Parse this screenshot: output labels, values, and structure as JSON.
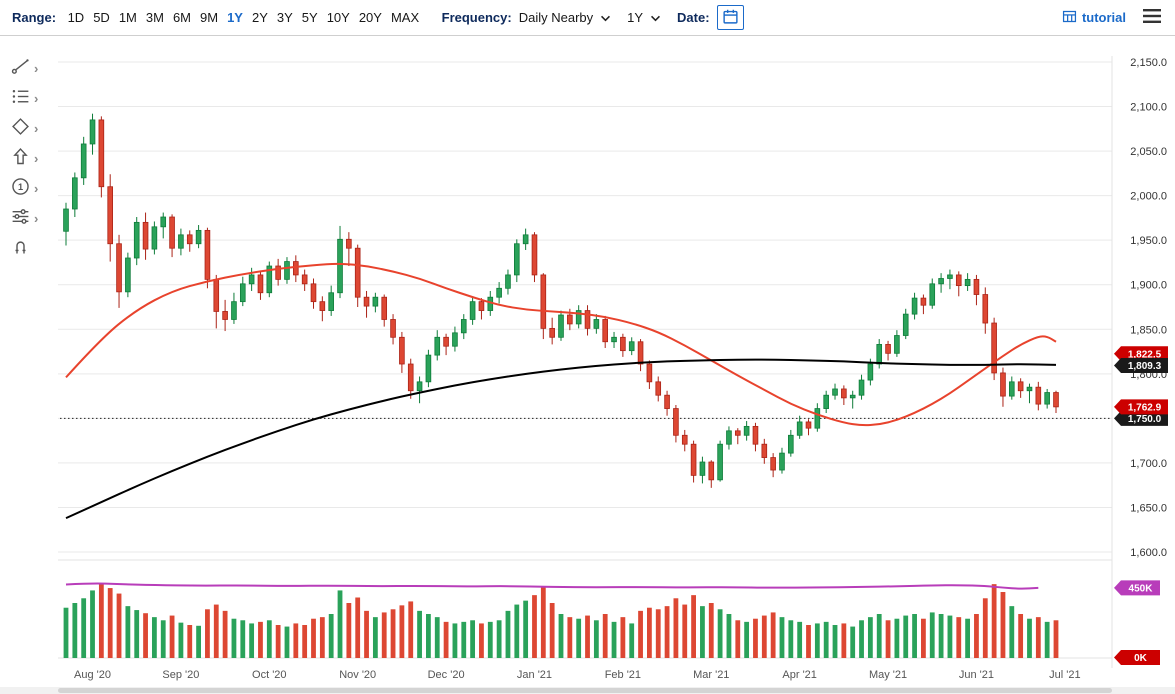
{
  "toolbar": {
    "range_label": "Range:",
    "range_options": [
      "1D",
      "5D",
      "1M",
      "3M",
      "6M",
      "9M",
      "1Y",
      "2Y",
      "3Y",
      "5Y",
      "10Y",
      "20Y",
      "MAX"
    ],
    "range_selected": "1Y",
    "frequency_label": "Frequency:",
    "frequency_value": "Daily Nearby",
    "period_value": "1Y",
    "date_label": "Date:",
    "tutorial_label": "tutorial"
  },
  "tools": [
    {
      "icon": "trend-line-tool-icon",
      "chevron": true
    },
    {
      "icon": "indicators-tool-icon",
      "chevron": true
    },
    {
      "icon": "shapes-tool-icon",
      "chevron": true
    },
    {
      "icon": "arrow-tool-icon",
      "chevron": true
    },
    {
      "icon": "number-label-tool-icon",
      "chevron": true
    },
    {
      "icon": "settings-tool-icon",
      "chevron": true
    },
    {
      "icon": "magnet-tool-icon",
      "chevron": false
    }
  ],
  "colors": {
    "accent_blue": "#1b6ac9",
    "label_navy": "#0e2a5c",
    "candle_up": "#2aa25a",
    "candle_up_stroke": "#0e7c39",
    "candle_down": "#dd4733",
    "candle_down_stroke": "#ab2317",
    "ma_fast": "#e8432d",
    "ma_slow": "#000000",
    "open_interest": "#b83dba",
    "badge_red": "#cc0000",
    "badge_black": "#1a1a1a",
    "grid": "#e9e9e9"
  },
  "chart_data": {
    "type": "candlestick",
    "x_axis": {
      "labels": [
        {
          "label": "Aug '20",
          "index": 3
        },
        {
          "label": "Sep '20",
          "index": 13
        },
        {
          "label": "Oct '20",
          "index": 23
        },
        {
          "label": "Nov '20",
          "index": 33
        },
        {
          "label": "Dec '20",
          "index": 43
        },
        {
          "label": "Jan '21",
          "index": 53
        },
        {
          "label": "Feb '21",
          "index": 63
        },
        {
          "label": "Mar '21",
          "index": 73
        },
        {
          "label": "Apr '21",
          "index": 83
        },
        {
          "label": "May '21",
          "index": 93
        },
        {
          "label": "Jun '21",
          "index": 103
        },
        {
          "label": "Jul '21",
          "index": 113
        }
      ]
    },
    "y_axis": {
      "min": 1600,
      "max": 2150,
      "step": 50,
      "labels": [
        "2,150.0",
        "2,100.0",
        "2,050.0",
        "2,000.0",
        "1,950.0",
        "1,900.0",
        "1,850.0",
        "1,800.0",
        "1,750.0",
        "1,700.0",
        "1,650.0",
        "1,600.0"
      ]
    },
    "reference_line": {
      "value": 1750.0,
      "style": "dotted"
    },
    "last_price": 1762.9,
    "badges": [
      {
        "label": "1,822.5",
        "value": 1822.5,
        "color": "#cc0000"
      },
      {
        "label": "1,809.3",
        "value": 1809.3,
        "color": "#1a1a1a"
      },
      {
        "label": "1,750.0",
        "value": 1750.0,
        "color": "#1a1a1a"
      },
      {
        "label": "1,762.9",
        "value": 1762.9,
        "color": "#cc0000"
      }
    ],
    "overlays": [
      {
        "name": "moving-average-fast",
        "color": "#e8432d",
        "points": [
          [
            0,
            1796
          ],
          [
            4,
            1840
          ],
          [
            8,
            1872
          ],
          [
            12,
            1893
          ],
          [
            16,
            1904
          ],
          [
            20,
            1912
          ],
          [
            24,
            1918
          ],
          [
            28,
            1922
          ],
          [
            31,
            1924
          ],
          [
            34,
            1921
          ],
          [
            37,
            1915
          ],
          [
            40,
            1907
          ],
          [
            43,
            1896
          ],
          [
            46,
            1886
          ],
          [
            49,
            1877
          ],
          [
            52,
            1872
          ],
          [
            55,
            1870
          ],
          [
            58,
            1868
          ],
          [
            61,
            1864
          ],
          [
            64,
            1857
          ],
          [
            67,
            1847
          ],
          [
            70,
            1832
          ],
          [
            73,
            1815
          ],
          [
            76,
            1798
          ],
          [
            79,
            1782
          ],
          [
            82,
            1766
          ],
          [
            85,
            1754
          ],
          [
            88,
            1745
          ],
          [
            90,
            1742
          ],
          [
            92,
            1743
          ],
          [
            94,
            1748
          ],
          [
            96,
            1756
          ],
          [
            98,
            1766
          ],
          [
            100,
            1778
          ],
          [
            102,
            1792
          ],
          [
            104,
            1806
          ],
          [
            106,
            1820
          ],
          [
            108,
            1833
          ],
          [
            110,
            1842
          ],
          [
            111,
            1842
          ],
          [
            112,
            1836
          ]
        ]
      },
      {
        "name": "moving-average-slow",
        "color": "#000000",
        "points": [
          [
            0,
            1638
          ],
          [
            4,
            1656
          ],
          [
            8,
            1674
          ],
          [
            12,
            1691
          ],
          [
            16,
            1707
          ],
          [
            20,
            1722
          ],
          [
            24,
            1736
          ],
          [
            28,
            1749
          ],
          [
            32,
            1760
          ],
          [
            36,
            1770
          ],
          [
            40,
            1779
          ],
          [
            44,
            1787
          ],
          [
            48,
            1794
          ],
          [
            52,
            1800
          ],
          [
            56,
            1805
          ],
          [
            60,
            1809
          ],
          [
            64,
            1812
          ],
          [
            68,
            1814
          ],
          [
            72,
            1815
          ],
          [
            76,
            1816
          ],
          [
            80,
            1816
          ],
          [
            84,
            1815
          ],
          [
            88,
            1814
          ],
          [
            92,
            1812
          ],
          [
            96,
            1811
          ],
          [
            100,
            1810
          ],
          [
            104,
            1810
          ],
          [
            108,
            1811
          ],
          [
            112,
            1810
          ]
        ]
      }
    ],
    "volume": {
      "axis_max_k": 560,
      "badges": [
        {
          "label": "450K",
          "value_k": 446,
          "color": "#b83dba"
        },
        {
          "label": "0K",
          "value_k": 3,
          "color": "#cc0000"
        }
      ],
      "open_interest": {
        "color": "#b83dba",
        "points": [
          [
            0,
            468
          ],
          [
            3,
            476
          ],
          [
            6,
            470
          ],
          [
            10,
            464
          ],
          [
            15,
            460
          ],
          [
            20,
            462
          ],
          [
            25,
            458
          ],
          [
            30,
            461
          ],
          [
            35,
            457
          ],
          [
            40,
            459
          ],
          [
            45,
            455
          ],
          [
            50,
            458
          ],
          [
            55,
            452
          ],
          [
            60,
            450
          ],
          [
            65,
            452
          ],
          [
            70,
            449
          ],
          [
            75,
            451
          ],
          [
            80,
            447
          ],
          [
            85,
            449
          ],
          [
            90,
            452
          ],
          [
            94,
            456
          ],
          [
            98,
            462
          ],
          [
            101,
            464
          ],
          [
            104,
            458
          ],
          [
            106,
            448
          ],
          [
            108,
            440
          ],
          [
            110,
            446
          ]
        ]
      }
    },
    "candles": [
      [
        1960,
        1992,
        1944,
        1985,
        320
      ],
      [
        1985,
        2026,
        1976,
        2020,
        350
      ],
      [
        2020,
        2066,
        2012,
        2058,
        380
      ],
      [
        2058,
        2092,
        2046,
        2085,
        430
      ],
      [
        2085,
        2089,
        1998,
        2010,
        470
      ],
      [
        2010,
        2024,
        1926,
        1946,
        445
      ],
      [
        1946,
        1956,
        1874,
        1892,
        410
      ],
      [
        1892,
        1936,
        1886,
        1930,
        330
      ],
      [
        1930,
        1976,
        1922,
        1970,
        305
      ],
      [
        1970,
        1981,
        1928,
        1940,
        285
      ],
      [
        1940,
        1971,
        1934,
        1965,
        260
      ],
      [
        1965,
        1981,
        1952,
        1976,
        240
      ],
      [
        1976,
        1979,
        1931,
        1941,
        270
      ],
      [
        1941,
        1963,
        1933,
        1956,
        225
      ],
      [
        1956,
        1961,
        1937,
        1946,
        210
      ],
      [
        1946,
        1967,
        1941,
        1961,
        205
      ],
      [
        1961,
        1964,
        1896,
        1906,
        310
      ],
      [
        1906,
        1911,
        1851,
        1870,
        340
      ],
      [
        1870,
        1883,
        1848,
        1861,
        300
      ],
      [
        1861,
        1891,
        1856,
        1881,
        250
      ],
      [
        1881,
        1909,
        1876,
        1901,
        240
      ],
      [
        1901,
        1919,
        1893,
        1911,
        220
      ],
      [
        1911,
        1916,
        1883,
        1891,
        230
      ],
      [
        1891,
        1926,
        1886,
        1921,
        240
      ],
      [
        1921,
        1929,
        1899,
        1906,
        210
      ],
      [
        1906,
        1931,
        1901,
        1926,
        200
      ],
      [
        1926,
        1933,
        1903,
        1911,
        220
      ],
      [
        1911,
        1917,
        1893,
        1901,
        210
      ],
      [
        1901,
        1907,
        1873,
        1881,
        250
      ],
      [
        1881,
        1887,
        1859,
        1871,
        260
      ],
      [
        1871,
        1899,
        1865,
        1891,
        280
      ],
      [
        1891,
        1966,
        1885,
        1951,
        430
      ],
      [
        1951,
        1959,
        1921,
        1941,
        350
      ],
      [
        1941,
        1945,
        1875,
        1886,
        385
      ],
      [
        1886,
        1893,
        1863,
        1876,
        300
      ],
      [
        1876,
        1891,
        1869,
        1886,
        260
      ],
      [
        1886,
        1889,
        1853,
        1861,
        290
      ],
      [
        1861,
        1867,
        1833,
        1841,
        310
      ],
      [
        1841,
        1847,
        1801,
        1811,
        335
      ],
      [
        1811,
        1817,
        1772,
        1781,
        360
      ],
      [
        1781,
        1797,
        1767,
        1791,
        300
      ],
      [
        1791,
        1827,
        1785,
        1821,
        280
      ],
      [
        1821,
        1849,
        1815,
        1841,
        260
      ],
      [
        1841,
        1845,
        1821,
        1831,
        230
      ],
      [
        1831,
        1853,
        1825,
        1846,
        220
      ],
      [
        1846,
        1867,
        1839,
        1861,
        230
      ],
      [
        1861,
        1887,
        1855,
        1881,
        240
      ],
      [
        1881,
        1885,
        1861,
        1871,
        220
      ],
      [
        1871,
        1893,
        1865,
        1886,
        230
      ],
      [
        1886,
        1903,
        1879,
        1896,
        240
      ],
      [
        1896,
        1917,
        1889,
        1911,
        300
      ],
      [
        1911,
        1951,
        1903,
        1946,
        340
      ],
      [
        1946,
        1963,
        1939,
        1956,
        365
      ],
      [
        1956,
        1959,
        1903,
        1911,
        400
      ],
      [
        1911,
        1913,
        1839,
        1851,
        455
      ],
      [
        1851,
        1863,
        1833,
        1841,
        350
      ],
      [
        1841,
        1871,
        1837,
        1866,
        280
      ],
      [
        1866,
        1873,
        1849,
        1856,
        260
      ],
      [
        1856,
        1877,
        1851,
        1871,
        250
      ],
      [
        1871,
        1877,
        1843,
        1851,
        270
      ],
      [
        1851,
        1867,
        1845,
        1861,
        240
      ],
      [
        1861,
        1865,
        1829,
        1836,
        280
      ],
      [
        1836,
        1847,
        1829,
        1841,
        230
      ],
      [
        1841,
        1845,
        1819,
        1826,
        260
      ],
      [
        1826,
        1841,
        1821,
        1836,
        220
      ],
      [
        1836,
        1839,
        1803,
        1811,
        300
      ],
      [
        1811,
        1815,
        1783,
        1791,
        320
      ],
      [
        1791,
        1797,
        1769,
        1776,
        310
      ],
      [
        1776,
        1781,
        1753,
        1761,
        330
      ],
      [
        1761,
        1765,
        1723,
        1731,
        380
      ],
      [
        1731,
        1737,
        1713,
        1721,
        340
      ],
      [
        1721,
        1725,
        1678,
        1686,
        400
      ],
      [
        1686,
        1707,
        1677,
        1701,
        330
      ],
      [
        1701,
        1703,
        1672,
        1681,
        350
      ],
      [
        1681,
        1725,
        1679,
        1721,
        310
      ],
      [
        1721,
        1741,
        1715,
        1736,
        280
      ],
      [
        1736,
        1739,
        1721,
        1731,
        240
      ],
      [
        1731,
        1747,
        1725,
        1741,
        230
      ],
      [
        1741,
        1745,
        1713,
        1721,
        250
      ],
      [
        1721,
        1727,
        1699,
        1706,
        270
      ],
      [
        1706,
        1711,
        1684,
        1692,
        290
      ],
      [
        1692,
        1717,
        1688,
        1711,
        260
      ],
      [
        1711,
        1737,
        1707,
        1731,
        240
      ],
      [
        1731,
        1753,
        1727,
        1746,
        230
      ],
      [
        1746,
        1749,
        1731,
        1739,
        210
      ],
      [
        1739,
        1767,
        1735,
        1761,
        220
      ],
      [
        1761,
        1781,
        1756,
        1776,
        230
      ],
      [
        1776,
        1789,
        1771,
        1783,
        210
      ],
      [
        1783,
        1787,
        1765,
        1773,
        220
      ],
      [
        1773,
        1781,
        1761,
        1776,
        200
      ],
      [
        1776,
        1799,
        1771,
        1793,
        240
      ],
      [
        1793,
        1817,
        1787,
        1811,
        260
      ],
      [
        1811,
        1839,
        1806,
        1833,
        280
      ],
      [
        1833,
        1837,
        1815,
        1823,
        240
      ],
      [
        1823,
        1849,
        1819,
        1843,
        250
      ],
      [
        1843,
        1873,
        1839,
        1867,
        270
      ],
      [
        1867,
        1891,
        1861,
        1885,
        280
      ],
      [
        1885,
        1889,
        1867,
        1877,
        250
      ],
      [
        1877,
        1907,
        1873,
        1901,
        290
      ],
      [
        1901,
        1913,
        1891,
        1907,
        280
      ],
      [
        1907,
        1917,
        1895,
        1911,
        270
      ],
      [
        1911,
        1915,
        1887,
        1899,
        260
      ],
      [
        1899,
        1913,
        1893,
        1906,
        250
      ],
      [
        1906,
        1911,
        1877,
        1889,
        280
      ],
      [
        1889,
        1897,
        1845,
        1857,
        380
      ],
      [
        1857,
        1863,
        1793,
        1801,
        470
      ],
      [
        1801,
        1807,
        1763,
        1775,
        420
      ],
      [
        1775,
        1797,
        1771,
        1791,
        330
      ],
      [
        1791,
        1795,
        1773,
        1781,
        280
      ],
      [
        1781,
        1789,
        1767,
        1785,
        250
      ],
      [
        1785,
        1791,
        1759,
        1766,
        260
      ],
      [
        1766,
        1783,
        1761,
        1779,
        230
      ],
      [
        1779,
        1781,
        1756,
        1762.9,
        240
      ]
    ]
  }
}
